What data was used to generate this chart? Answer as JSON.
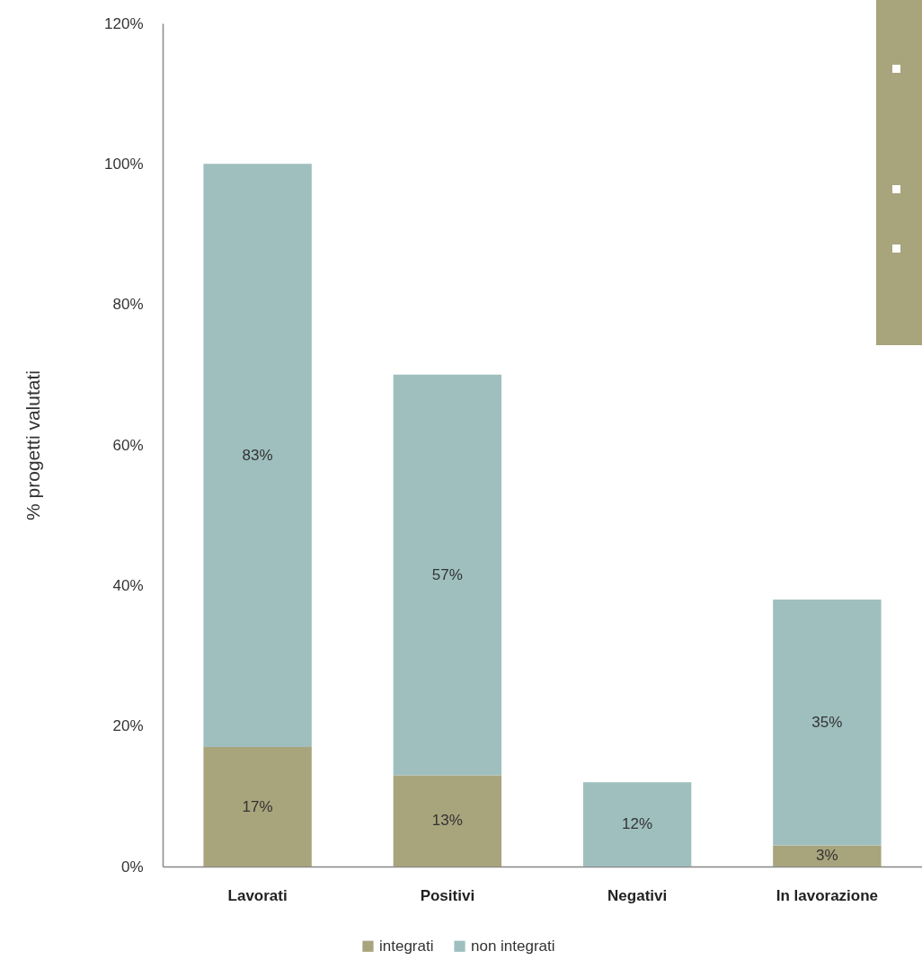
{
  "chart_data": {
    "type": "bar",
    "stacked": true,
    "ylabel": "% progetti valutati",
    "categories": [
      "Lavorati",
      "Positivi",
      "Negativi",
      "In lavorazione"
    ],
    "series": [
      {
        "name": "integrati",
        "color": "#a8a47c",
        "values": [
          17,
          13,
          0,
          3
        ],
        "value_labels": [
          "17%",
          "13%",
          null,
          "3%"
        ]
      },
      {
        "name": "non integrati",
        "color": "#9fbfbf",
        "values": [
          83,
          57,
          12,
          35
        ],
        "value_labels": [
          "83%",
          "57%",
          "12%",
          "35%"
        ]
      }
    ],
    "ylim": [
      0,
      120
    ],
    "yticks": [
      {
        "value": 0,
        "label": "0%"
      },
      {
        "value": 20,
        "label": "20%"
      },
      {
        "value": 40,
        "label": "40%"
      },
      {
        "value": 60,
        "label": "60%"
      },
      {
        "value": 80,
        "label": "80%"
      },
      {
        "value": 100,
        "label": "100%"
      },
      {
        "value": 120,
        "label": "120%"
      }
    ],
    "grid": false,
    "legend": "bottom"
  }
}
